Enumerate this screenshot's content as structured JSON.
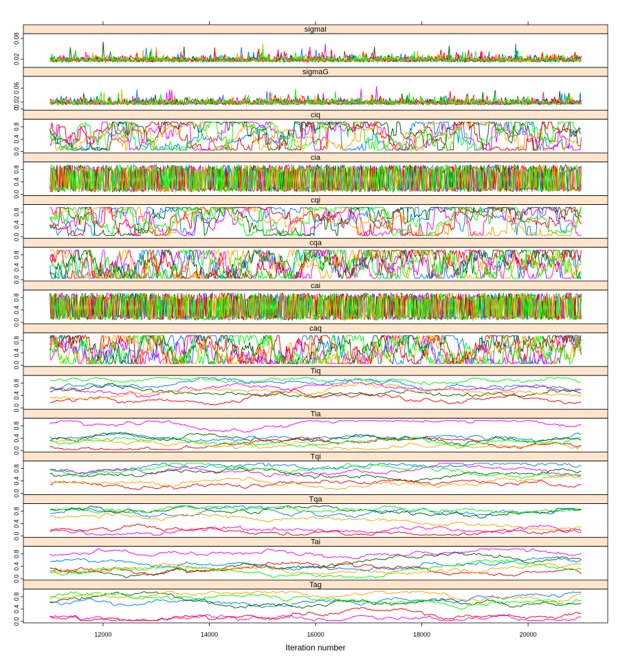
{
  "chart_data": {
    "type": "line",
    "xlabel": "Iteration number",
    "xlim": [
      10500,
      21500
    ],
    "x_range_data": [
      11000,
      21000
    ],
    "x_ticks": [
      12000,
      14000,
      16000,
      18000,
      20000
    ],
    "x_tick_labels": [
      "12000",
      "14000",
      "16000",
      "18000",
      "20000"
    ],
    "top_axis_ticks": true,
    "grid": false,
    "strip_color": "#ffe5cc",
    "series_colors": [
      "#0080ff",
      "#ff00ff",
      "#006400",
      "#ff0000",
      "#ffa500",
      "#00ff00"
    ],
    "panels": [
      {
        "name": "sigmaI",
        "ylim": [
          0,
          0.09
        ],
        "y_ticks": [
          0.02,
          0.08
        ],
        "y_tick_labels": [
          "0.02",
          "0.08"
        ],
        "kind": "noise_low",
        "level": 0.012
      },
      {
        "name": "sigmaG",
        "ylim": [
          0,
          0.09
        ],
        "y_ticks": [
          0.0,
          0.02,
          0.06
        ],
        "y_tick_labels": [
          "0",
          "0.02",
          "0.06"
        ],
        "kind": "noise_low",
        "level": 0.012
      },
      {
        "name": "ciq",
        "ylim": [
          0,
          1
        ],
        "y_ticks": [
          0.0,
          0.4,
          0.8
        ],
        "y_tick_labels": [
          "0.0",
          "0.4",
          "0.8"
        ],
        "kind": "mixed"
      },
      {
        "name": "cia",
        "ylim": [
          0,
          1
        ],
        "y_ticks": [
          0.0,
          0.4,
          0.8
        ],
        "y_tick_labels": [
          "0.0",
          "0.4",
          "0.8"
        ],
        "kind": "dense"
      },
      {
        "name": "cqi",
        "ylim": [
          0,
          1
        ],
        "y_ticks": [
          0.0,
          0.4,
          0.8
        ],
        "y_tick_labels": [
          "0.0",
          "0.4",
          "0.8"
        ],
        "kind": "mixed"
      },
      {
        "name": "cqa",
        "ylim": [
          0,
          1
        ],
        "y_ticks": [
          0.0,
          0.4,
          0.8
        ],
        "y_tick_labels": [
          "0.0",
          "0.4",
          "0.8"
        ],
        "kind": "busy"
      },
      {
        "name": "cai",
        "ylim": [
          0,
          1
        ],
        "y_ticks": [
          0.0,
          0.4,
          0.8
        ],
        "y_tick_labels": [
          "0.0",
          "0.4",
          "0.8"
        ],
        "kind": "dense"
      },
      {
        "name": "caq",
        "ylim": [
          0,
          1
        ],
        "y_ticks": [
          0.0,
          0.4,
          0.8
        ],
        "y_tick_labels": [
          "0.0",
          "0.4",
          "0.8"
        ],
        "kind": "busy"
      },
      {
        "name": "Tiq",
        "ylim": [
          0,
          1
        ],
        "y_ticks": [
          0.0,
          0.4,
          0.8
        ],
        "y_tick_labels": [
          "0.0",
          "0.4",
          "0.8"
        ],
        "kind": "smooth",
        "means": [
          0.7,
          0.55,
          0.5,
          0.15,
          0.3,
          0.9
        ]
      },
      {
        "name": "Tia",
        "ylim": [
          0,
          1
        ],
        "y_ticks": [
          0.0,
          0.4,
          0.8
        ],
        "y_tick_labels": [
          "0.0",
          "0.4",
          "0.8"
        ],
        "kind": "smooth",
        "means": [
          0.45,
          0.85,
          0.35,
          0.15,
          0.4,
          0.3
        ]
      },
      {
        "name": "Tqi",
        "ylim": [
          0,
          1
        ],
        "y_ticks": [
          0.0,
          0.4,
          0.8
        ],
        "y_tick_labels": [
          "0.0",
          "0.4",
          "0.8"
        ],
        "kind": "smooth",
        "means": [
          0.8,
          0.75,
          0.7,
          0.3,
          0.35,
          0.85
        ]
      },
      {
        "name": "Tqa",
        "ylim": [
          0,
          1
        ],
        "y_ticks": [
          0.0,
          0.4,
          0.8
        ],
        "y_tick_labels": [
          "0.0",
          "0.4",
          "0.8"
        ],
        "kind": "smooth",
        "means": [
          0.8,
          0.2,
          0.85,
          0.15,
          0.6,
          0.85
        ]
      },
      {
        "name": "Tai",
        "ylim": [
          0,
          1
        ],
        "y_ticks": [
          0.0,
          0.4,
          0.8
        ],
        "y_tick_labels": [
          "0.0",
          "0.4",
          "0.8"
        ],
        "kind": "smooth",
        "means": [
          0.55,
          0.8,
          0.35,
          0.25,
          0.3,
          0.3
        ]
      },
      {
        "name": "Tag",
        "ylim": [
          0,
          1
        ],
        "y_ticks": [
          0.0,
          0.4,
          0.8
        ],
        "y_tick_labels": [
          "0.0",
          "0.4",
          "0.8"
        ],
        "kind": "smooth",
        "means": [
          0.6,
          0.2,
          0.7,
          0.15,
          0.75,
          0.8
        ]
      }
    ]
  }
}
